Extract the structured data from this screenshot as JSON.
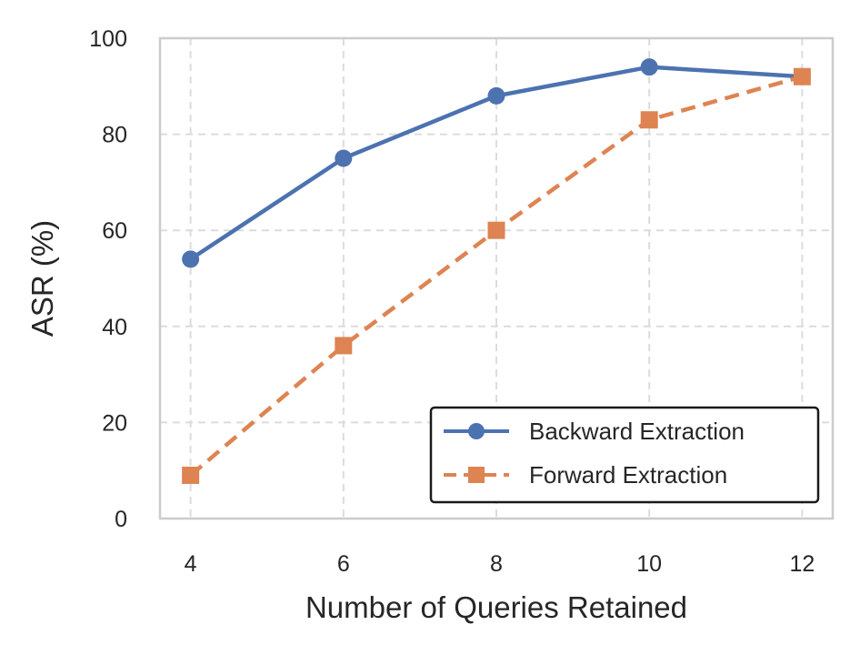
{
  "chart_data": {
    "type": "line",
    "title": "",
    "xlabel": "Number of Queries Retained",
    "ylabel": "ASR (%)",
    "x": [
      4,
      6,
      8,
      10,
      12
    ],
    "x_ticks": [
      "4",
      "6",
      "8",
      "10",
      "12"
    ],
    "y_ticks": [
      "0",
      "20",
      "40",
      "60",
      "80",
      "100"
    ],
    "xlim": [
      3.6,
      12.4
    ],
    "ylim": [
      0,
      100
    ],
    "grid": true,
    "legend_position": "lower-right",
    "series": [
      {
        "name": "Backward Extraction",
        "values": [
          54,
          75,
          88,
          94,
          92
        ],
        "color": "#4c72b0",
        "marker": "circle",
        "line_style": "solid"
      },
      {
        "name": "Forward Extraction",
        "values": [
          9,
          36,
          60,
          83,
          92
        ],
        "color": "#dd8452",
        "marker": "square",
        "line_style": "dashed"
      }
    ]
  }
}
